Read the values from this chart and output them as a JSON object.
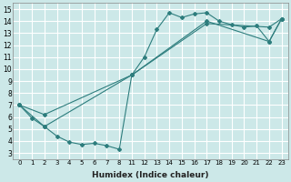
{
  "xlabel": "Humidex (Indice chaleur)",
  "bg_color": "#cce8e8",
  "grid_color": "#ffffff",
  "line_color": "#2d7d7d",
  "ylim": [
    2.5,
    15.5
  ],
  "yticks": [
    3,
    4,
    5,
    6,
    7,
    8,
    9,
    10,
    11,
    12,
    13,
    14,
    15
  ],
  "xtick_labels": [
    "0",
    "1",
    "2",
    "3",
    "4",
    "5",
    "6",
    "7",
    "8",
    "11",
    "12",
    "13",
    "14",
    "15",
    "16",
    "17",
    "18",
    "19",
    "20",
    "21",
    "22",
    "23"
  ],
  "line1_indices": [
    0,
    1,
    2,
    3,
    4,
    5,
    6,
    7,
    8,
    9,
    10,
    11,
    12,
    13,
    14,
    15,
    16,
    17,
    18,
    19,
    20,
    21
  ],
  "line1_y": [
    7.0,
    5.9,
    5.2,
    4.4,
    3.9,
    3.7,
    3.8,
    3.6,
    3.3,
    9.5,
    11.0,
    13.3,
    14.7,
    14.3,
    14.6,
    14.7,
    14.0,
    13.7,
    13.5,
    13.6,
    12.3,
    14.2
  ],
  "line2_indices": [
    0,
    2,
    9,
    15,
    20,
    21
  ],
  "line2_y": [
    7.0,
    6.2,
    9.5,
    14.0,
    12.3,
    14.2
  ],
  "line3_indices": [
    0,
    2,
    9,
    15,
    20,
    21
  ],
  "line3_y": [
    7.0,
    5.2,
    9.5,
    13.8,
    13.5,
    14.2
  ]
}
